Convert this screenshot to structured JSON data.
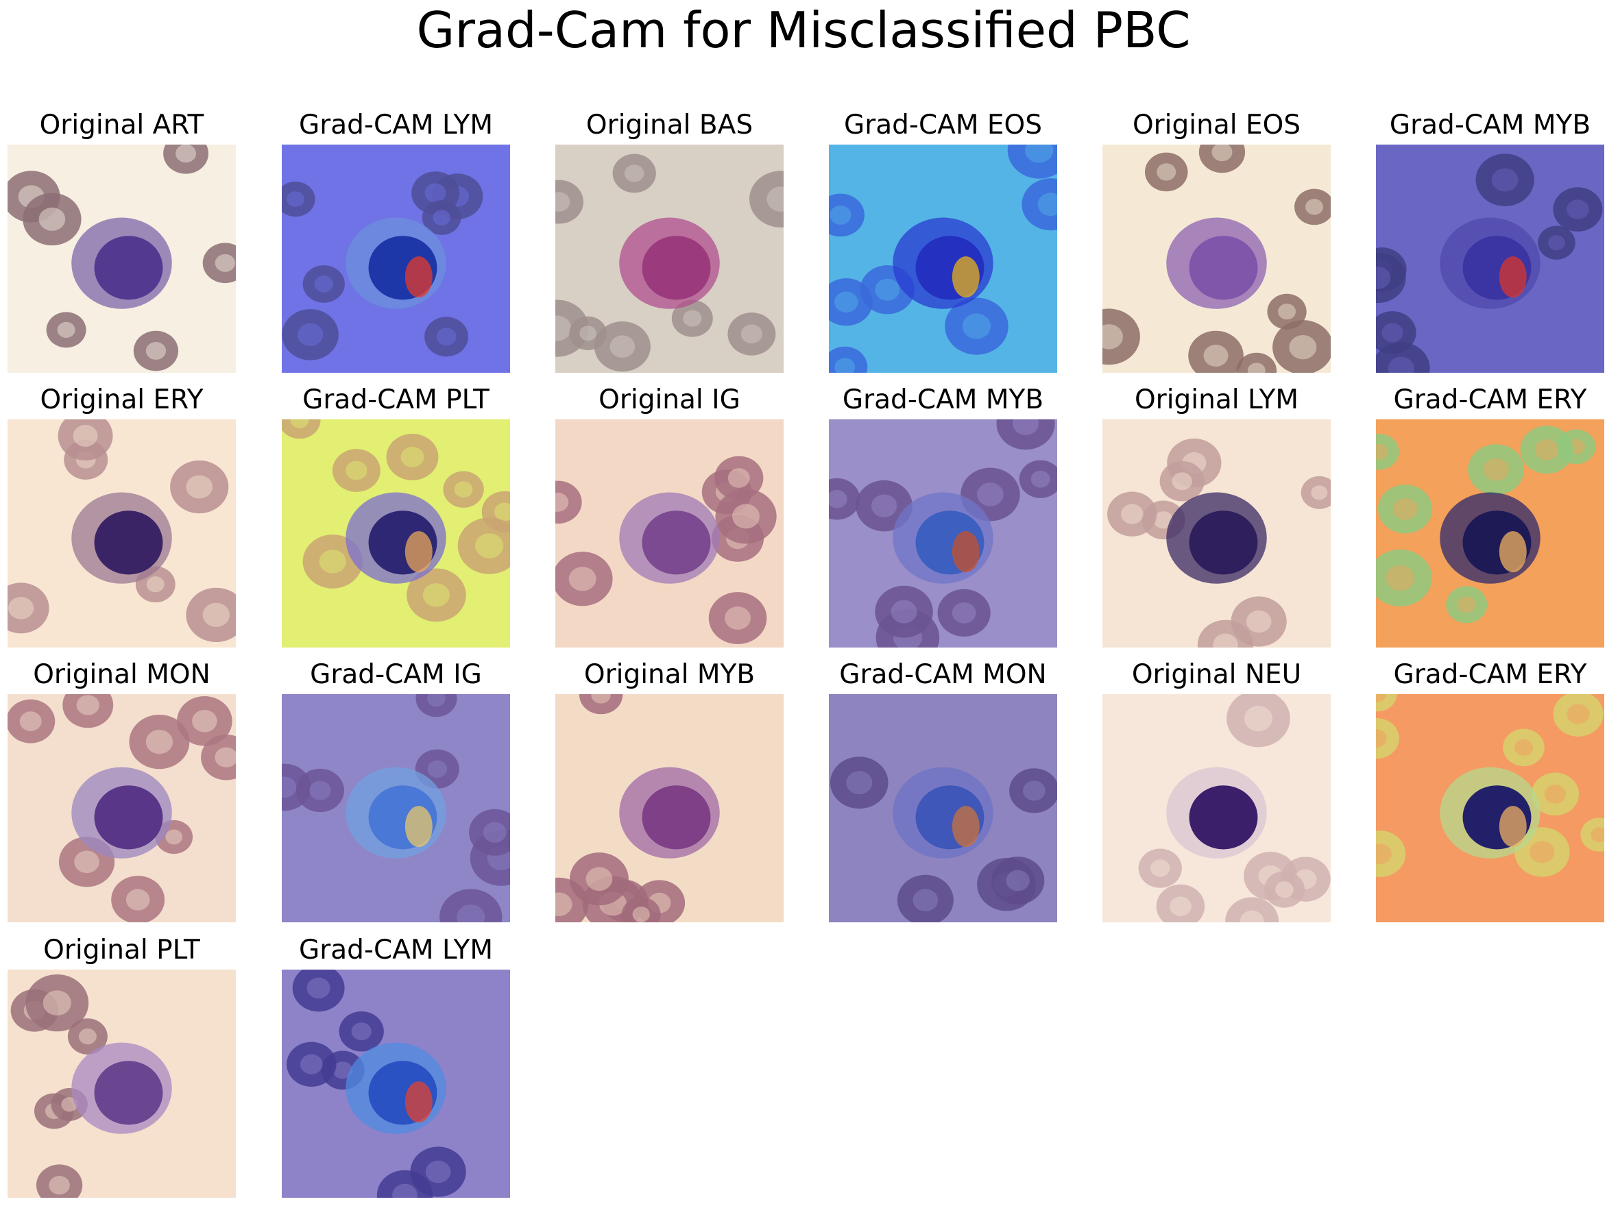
{
  "figure": {
    "title": "Grad-Cam for Misclassified PBC"
  },
  "panels": [
    {
      "title": "Original ART",
      "kind": "original",
      "bg": "#f6efe2",
      "cell": "#7f67a9",
      "nucleus": "#533a90",
      "rbc": "#8c6f73"
    },
    {
      "title": "Grad-CAM LYM",
      "kind": "gradcam",
      "bg": "#6f73e6",
      "cell": "#6b8fdc",
      "nucleus": "#1d37a8",
      "rbc": "#4f4d97",
      "hot": "#e33b2a"
    },
    {
      "title": "Original BAS",
      "kind": "original",
      "bg": "#d8cfc5",
      "cell": "#b04f8d",
      "nucleus": "#9b3b7d",
      "rbc": "#9f8f8c"
    },
    {
      "title": "Grad-CAM EOS",
      "kind": "gradcam",
      "bg": "#54b4e6",
      "cell": "#2a3cd0",
      "nucleus": "#2330c0",
      "rbc": "#3b69db",
      "hot": "#e8b21b"
    },
    {
      "title": "Original EOS",
      "kind": "original",
      "bg": "#f5e9d6",
      "cell": "#8c62b0",
      "nucleus": "#7e56aa",
      "rbc": "#8d6f67"
    },
    {
      "title": "Grad-CAM MYB",
      "kind": "gradcam",
      "bg": "#6a66c4",
      "cell": "#5049ae",
      "nucleus": "#3b34a3",
      "rbc": "#3f3e84",
      "hot": "#d9362a"
    },
    {
      "title": "Original ERY",
      "kind": "original",
      "bg": "#f8e6d3",
      "cell": "#9c7891",
      "nucleus": "#3b2466",
      "rbc": "#b88f90"
    },
    {
      "title": "Grad-CAM PLT",
      "kind": "gradcam",
      "bg": "#e2ef72",
      "cell": "#7b6fd0",
      "nucleus": "#2e2874",
      "rbc": "#c9a472",
      "hot": "#e9a55a"
    },
    {
      "title": "Original IG",
      "kind": "original",
      "bg": "#f3d9c5",
      "cell": "#a07ab5",
      "nucleus": "#7c4a90",
      "rbc": "#a66f7f"
    },
    {
      "title": "Grad-CAM MYB",
      "kind": "gradcam",
      "bg": "#9a8fc9",
      "cell": "#6f75c9",
      "nucleus": "#3d5fbf",
      "rbc": "#6a5390",
      "hot": "#c7502a"
    },
    {
      "title": "Original LYM",
      "kind": "original",
      "bg": "#f6e5d4",
      "cell": "#3a2a66",
      "nucleus": "#2f1f5c",
      "rbc": "#c29f9c"
    },
    {
      "title": "Grad-CAM ERY",
      "kind": "gradcam",
      "bg": "#f4a15b",
      "cell": "#2f2a6b",
      "nucleus": "#1e1a56",
      "rbc": "#8ec97f",
      "hot": "#f0b25f"
    },
    {
      "title": "Original MON",
      "kind": "original",
      "bg": "#f4dfcf",
      "cell": "#9b85c0",
      "nucleus": "#5a3688",
      "rbc": "#aa7780"
    },
    {
      "title": "Grad-CAM IG",
      "kind": "gradcam",
      "bg": "#8f86c7",
      "cell": "#71a0e0",
      "nucleus": "#4a78d6",
      "rbc": "#6b5596",
      "hot": "#e7c56a"
    },
    {
      "title": "Original MYB",
      "kind": "original",
      "bg": "#f3dcc6",
      "cell": "#a06ba7",
      "nucleus": "#7f4087",
      "rbc": "#a26b7b"
    },
    {
      "title": "Grad-CAM MON",
      "kind": "gradcam",
      "bg": "#8d84c0",
      "cell": "#6f73c5",
      "nucleus": "#3e57b8",
      "rbc": "#5e4b8c",
      "hot": "#c9713b"
    },
    {
      "title": "Original NEU",
      "kind": "original",
      "bg": "#f7e6da",
      "cell": "#d9c6d2",
      "nucleus": "#3b1f6b",
      "rbc": "#d0b2b0"
    },
    {
      "title": "Grad-CAM ERY",
      "kind": "gradcam",
      "bg": "#f59a62",
      "cell": "#b6d88e",
      "nucleus": "#23206a",
      "rbc": "#d6d16d",
      "hot": "#efb062"
    },
    {
      "title": "Original PLT",
      "kind": "original",
      "bg": "#f6e1cf",
      "cell": "#aa88c3",
      "nucleus": "#6a4590",
      "rbc": "#9a7079"
    },
    {
      "title": "Grad-CAM LYM",
      "kind": "gradcam",
      "bg": "#8e82c9",
      "cell": "#4f8be0",
      "nucleus": "#2a52c2",
      "rbc": "#433c93",
      "hot": "#e2432f"
    }
  ]
}
